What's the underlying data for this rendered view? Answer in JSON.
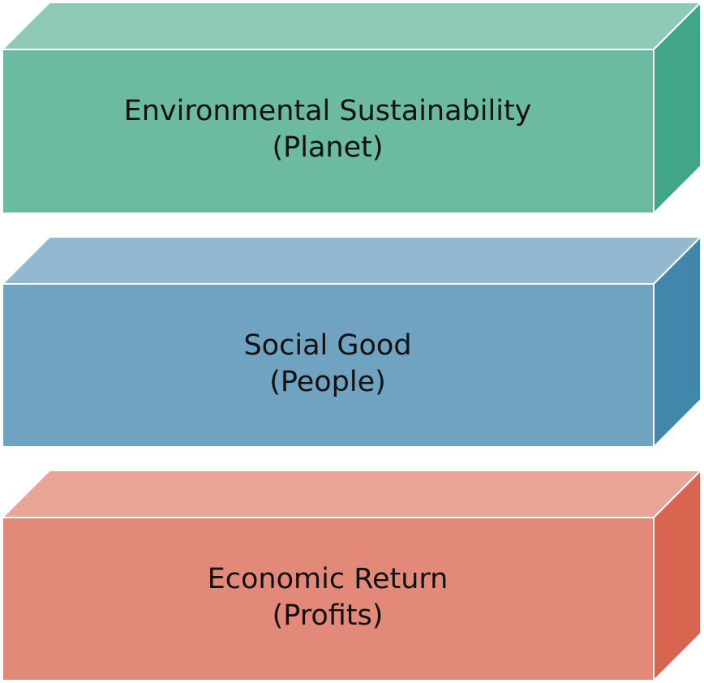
{
  "blocks": [
    {
      "line1": "Environmental Sustainability",
      "line2": "(Planet)",
      "colors": {
        "front": "#6dbaa3",
        "top": "#8fcab9",
        "side": "#40a589"
      }
    },
    {
      "line1": "Social Good",
      "line2": "(People)",
      "colors": {
        "front": "#70a3c2",
        "top": "#93b9d0",
        "side": "#4187ac"
      }
    },
    {
      "line1": "Economic Return",
      "line2": "(Profits)",
      "colors": {
        "front": "#e2897a",
        "top": "#e9a597",
        "side": "#d9644f"
      }
    }
  ]
}
